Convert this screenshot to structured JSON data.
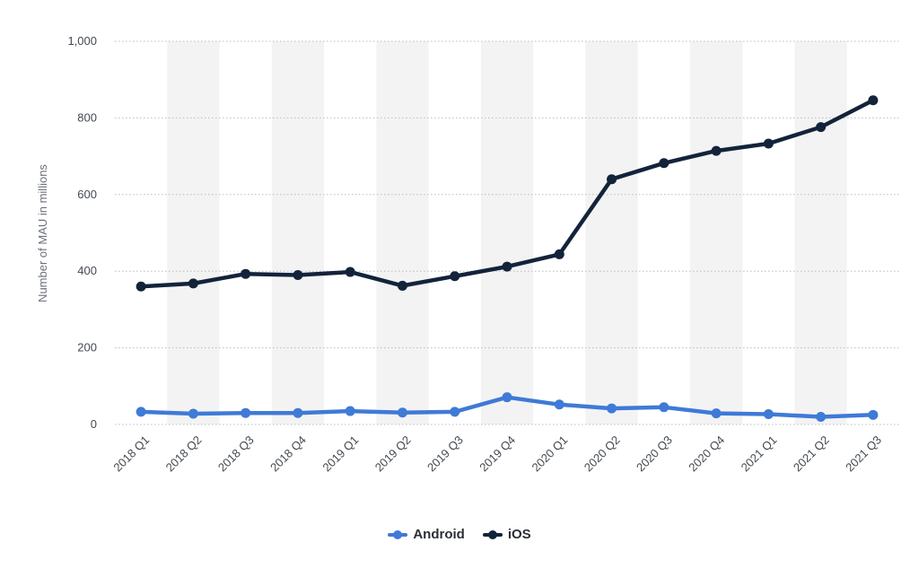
{
  "chart_data": {
    "type": "line",
    "categories": [
      "2018 Q1",
      "2018 Q2",
      "2018 Q3",
      "2018 Q4",
      "2019 Q1",
      "2019 Q2",
      "2019 Q3",
      "2019 Q4",
      "2020 Q1",
      "2020 Q2",
      "2020 Q3",
      "2020 Q4",
      "2021 Q1",
      "2021 Q2",
      "2021 Q3"
    ],
    "series": [
      {
        "name": "Android",
        "color": "#3f7ad7",
        "values": [
          33,
          28,
          30,
          30,
          35,
          31,
          33,
          71,
          52,
          42,
          45,
          29,
          27,
          20,
          25
        ]
      },
      {
        "name": "iOS",
        "color": "#13233a",
        "values": [
          360,
          368,
          393,
          390,
          398,
          362,
          387,
          412,
          444,
          640,
          682,
          714,
          733,
          776,
          846
        ]
      }
    ],
    "title": "",
    "xlabel": "",
    "ylabel": "Number of MAU in millions",
    "ylim": [
      0,
      1000
    ],
    "yticks": [
      "0",
      "200",
      "400",
      "600",
      "800",
      "1,000"
    ],
    "grid": "horizontal dotted",
    "alternating_column_bands": true,
    "legend_position": "bottom-center"
  }
}
